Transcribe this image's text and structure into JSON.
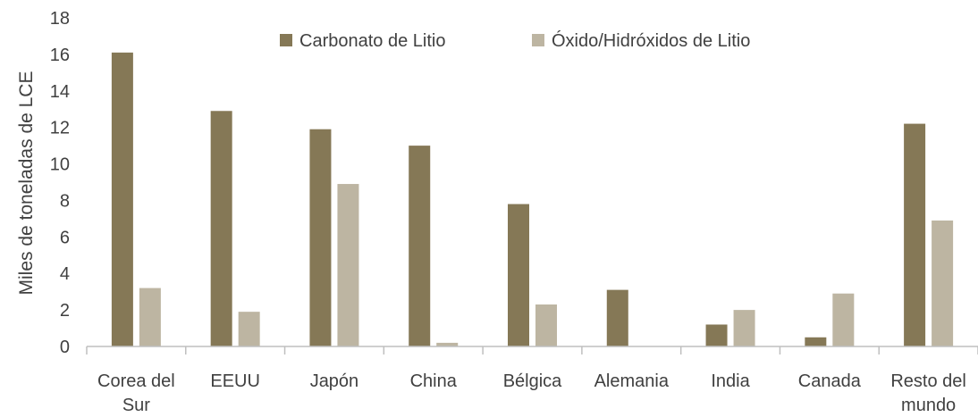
{
  "chart_data": {
    "type": "bar",
    "title": "",
    "xlabel": "",
    "ylabel": "Miles de toneladas de LCE",
    "ylim": [
      0,
      18
    ],
    "yticks": [
      0,
      2,
      4,
      6,
      8,
      10,
      12,
      14,
      16,
      18
    ],
    "grid": false,
    "legend_position": "top",
    "categories": [
      [
        "Corea del",
        "Sur"
      ],
      [
        "EEUU"
      ],
      [
        "Japón"
      ],
      [
        "China"
      ],
      [
        "Bélgica"
      ],
      [
        "Alemania"
      ],
      [
        "India"
      ],
      [
        "Canada"
      ],
      [
        "Resto del",
        "mundo"
      ]
    ],
    "series": [
      {
        "name": "Carbonato de Litio",
        "color": "#857856",
        "values": [
          16.1,
          12.9,
          11.9,
          11.0,
          7.8,
          3.1,
          1.2,
          0.5,
          12.2
        ]
      },
      {
        "name": "Óxido/Hidróxidos de Litio",
        "color": "#bdb5a2",
        "values": [
          3.2,
          1.9,
          8.9,
          0.2,
          2.3,
          0.0,
          2.0,
          2.9,
          6.9
        ]
      }
    ]
  }
}
